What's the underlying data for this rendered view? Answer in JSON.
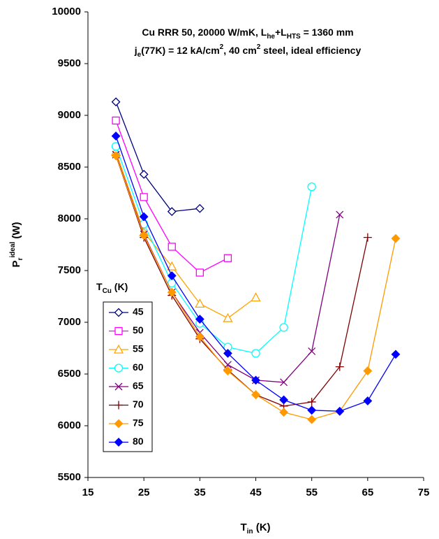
{
  "chart_data": {
    "type": "line",
    "annotation_lines": [
      [
        {
          "text": "Cu RRR 50, 20000 W/mK, L"
        },
        {
          "text": "he",
          "script": "sub"
        },
        {
          "text": "+L"
        },
        {
          "text": "HTS",
          "script": "sub"
        },
        {
          "text": " = 1360 mm"
        }
      ],
      [
        {
          "text": "j"
        },
        {
          "text": "e",
          "script": "sub"
        },
        {
          "text": "(77K) = 12 kA/cm"
        },
        {
          "text": "2",
          "script": "sup"
        },
        {
          "text": ", 40 cm"
        },
        {
          "text": "2",
          "script": "sup"
        },
        {
          "text": " steel, ideal efficiency"
        }
      ]
    ],
    "x_label": [
      {
        "text": "T"
      },
      {
        "text": "in",
        "script": "sub"
      },
      {
        "text": " (K)"
      }
    ],
    "y_label": [
      {
        "text": "P"
      },
      {
        "text": "r",
        "script": "sub"
      },
      {
        "text": "ideal",
        "script": "sup"
      },
      {
        "text": " (W)"
      }
    ],
    "legend_title": [
      {
        "text": "T"
      },
      {
        "text": "Cu",
        "script": "sub"
      },
      {
        "text": " (K)"
      }
    ],
    "xlim": [
      15,
      75
    ],
    "xticks": [
      15,
      25,
      35,
      45,
      55,
      65,
      75
    ],
    "ylim": [
      5500,
      10000
    ],
    "yticks": [
      5500,
      6000,
      6500,
      7000,
      7500,
      8000,
      8500,
      9000,
      9500,
      10000
    ],
    "grid": false,
    "series": [
      {
        "name": "45",
        "color": "#000080",
        "marker": "diamond",
        "filled": false,
        "x": [
          20,
          25,
          30,
          35
        ],
        "values": [
          9130,
          8430,
          8070,
          8100
        ]
      },
      {
        "name": "50",
        "color": "#FF00FF",
        "marker": "square",
        "filled": false,
        "x": [
          20,
          25,
          30,
          35,
          40
        ],
        "values": [
          8950,
          8210,
          7730,
          7480,
          7620
        ]
      },
      {
        "name": "55",
        "color": "#FFA500",
        "marker": "triangle",
        "filled": false,
        "x": [
          20,
          25,
          30,
          35,
          40,
          45
        ],
        "values": [
          8650,
          7870,
          7540,
          7180,
          7040,
          7240
        ]
      },
      {
        "name": "60",
        "color": "#00FFFF",
        "marker": "circle",
        "filled": false,
        "x": [
          20,
          25,
          30,
          35,
          40,
          45,
          50,
          55
        ],
        "values": [
          8700,
          7950,
          7380,
          6990,
          6760,
          6700,
          6950,
          8310
        ]
      },
      {
        "name": "65",
        "color": "#800080",
        "marker": "x",
        "filled": false,
        "x": [
          20,
          25,
          30,
          35,
          40,
          45,
          50,
          55,
          60
        ],
        "values": [
          8620,
          7850,
          7290,
          6900,
          6590,
          6440,
          6420,
          6720,
          8040
        ]
      },
      {
        "name": "70",
        "color": "#800000",
        "marker": "plus",
        "filled": false,
        "x": [
          20,
          25,
          30,
          35,
          40,
          45,
          50,
          55,
          60,
          65
        ],
        "values": [
          8610,
          7820,
          7260,
          6840,
          6540,
          6300,
          6190,
          6230,
          6570,
          7820
        ]
      },
      {
        "name": "75",
        "color": "#FF9900",
        "marker": "diamond",
        "filled": true,
        "x": [
          20,
          25,
          30,
          35,
          40,
          45,
          50,
          55,
          60,
          65,
          70
        ],
        "values": [
          8610,
          7840,
          7290,
          6860,
          6530,
          6300,
          6130,
          6060,
          6140,
          6530,
          7810
        ]
      },
      {
        "name": "80",
        "color": "#0000FF",
        "marker": "diamond",
        "filled": true,
        "x": [
          20,
          25,
          30,
          35,
          40,
          45,
          50,
          55,
          60,
          65,
          70
        ],
        "values": [
          8800,
          8020,
          7450,
          7030,
          6700,
          6440,
          6250,
          6150,
          6140,
          6240,
          6690
        ]
      }
    ]
  }
}
